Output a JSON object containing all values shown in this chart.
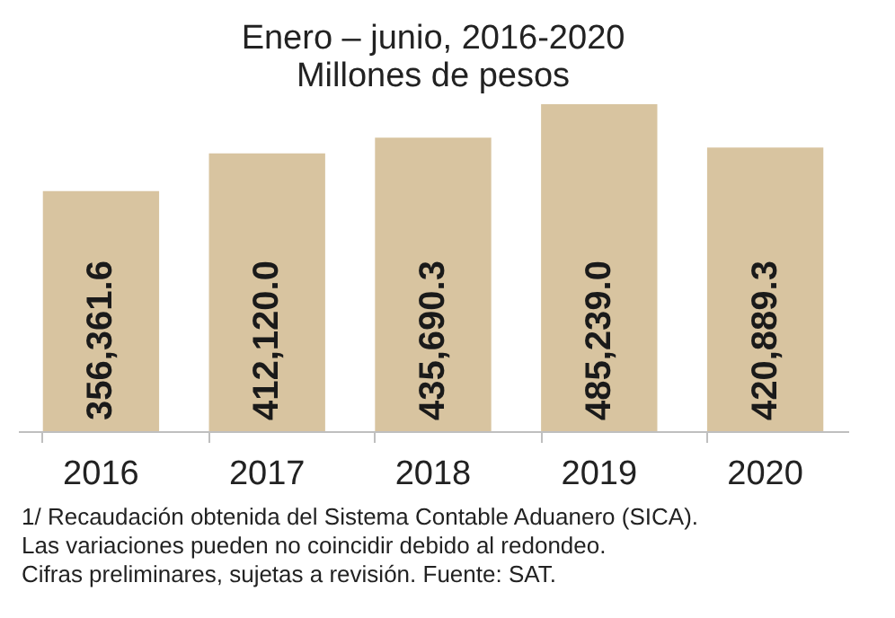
{
  "chart_data": {
    "type": "bar",
    "title": "Enero – junio, 2016-2020",
    "subtitle": "Millones de pesos",
    "categories": [
      "2016",
      "2017",
      "2018",
      "2019",
      "2020"
    ],
    "series": [
      {
        "color": "#d8c4a0",
        "values": [
          356361.6,
          412120.0,
          435690.3,
          485239.0,
          420889.3
        ],
        "value_labels": [
          "356,361.6",
          "412,120.0",
          "435,690.3",
          "485,239.0",
          "420,889.3"
        ]
      }
    ],
    "annotations": [
      "1/ Recaudación obtenida del Sistema Contable Aduanero (SICA).",
      "Las variaciones pueden no coincidir debido al redondeo.",
      "Cifras preliminares, sujetas a revisión. Fuente: SAT."
    ]
  }
}
